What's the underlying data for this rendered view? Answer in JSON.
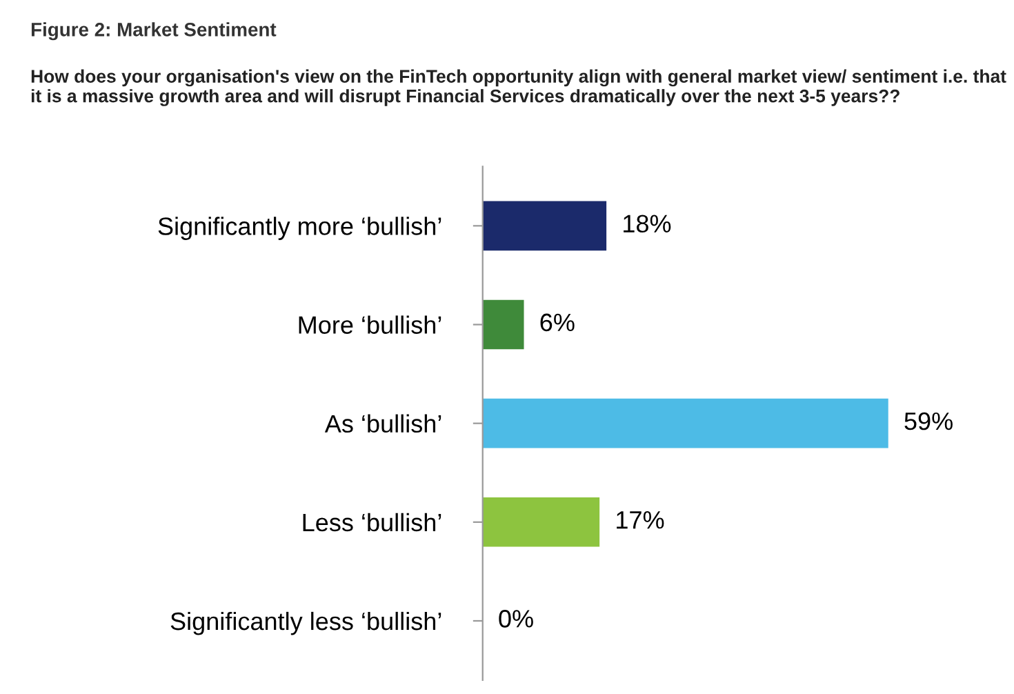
{
  "chart_data": {
    "type": "bar",
    "orientation": "horizontal",
    "title": "Figure 2: Market Sentiment",
    "subtitle": "How does your organisation's view on the FinTech opportunity align with general market view/ sentiment i.e. that it is a massive growth area and will disrupt Financial Services dramatically over the next 3-5 years??",
    "categories": [
      "Significantly more ‘bullish’",
      "More ‘bullish’",
      "As ‘bullish’",
      "Less ‘bullish’",
      "Significantly less ‘bullish’"
    ],
    "values": [
      18,
      6,
      59,
      17,
      0
    ],
    "value_labels": [
      "18%",
      "6%",
      "59%",
      "17%",
      "0%"
    ],
    "colors": [
      "#1b2a6b",
      "#3f8a3a",
      "#4dbbe6",
      "#8dc43f",
      "#8dc43f"
    ],
    "grid": false,
    "legend": false
  }
}
